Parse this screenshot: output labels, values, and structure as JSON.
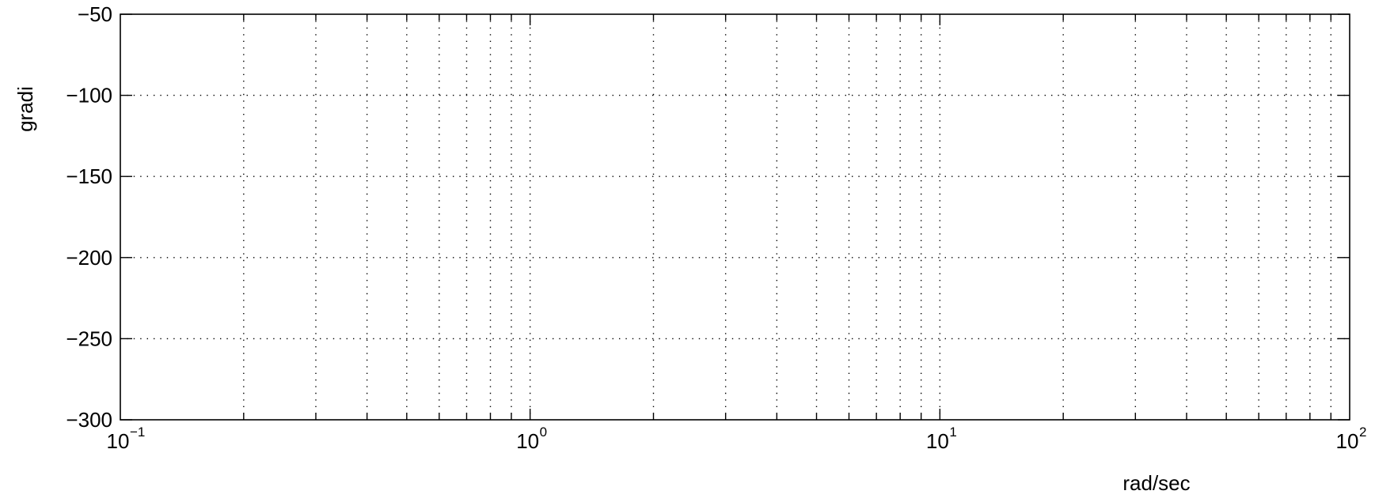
{
  "chart_data": {
    "type": "line",
    "title": "",
    "xlabel": "rad/sec",
    "ylabel": "gradi",
    "xscale": "log",
    "xlim": [
      0.1,
      100
    ],
    "ylim": [
      -300,
      -50
    ],
    "x_ticks": [
      {
        "value": 0.1,
        "base": "10",
        "exp": "−1"
      },
      {
        "value": 1,
        "base": "10",
        "exp": "0"
      },
      {
        "value": 10,
        "base": "10",
        "exp": "1"
      },
      {
        "value": 100,
        "base": "10",
        "exp": "2"
      }
    ],
    "y_ticks": [
      {
        "value": -50,
        "label": "−50"
      },
      {
        "value": -100,
        "label": "−100"
      },
      {
        "value": -150,
        "label": "−150"
      },
      {
        "value": -200,
        "label": "−200"
      },
      {
        "value": -250,
        "label": "−250"
      },
      {
        "value": -300,
        "label": "−300"
      }
    ],
    "grid": true,
    "grid_style": "dotted",
    "series": []
  }
}
